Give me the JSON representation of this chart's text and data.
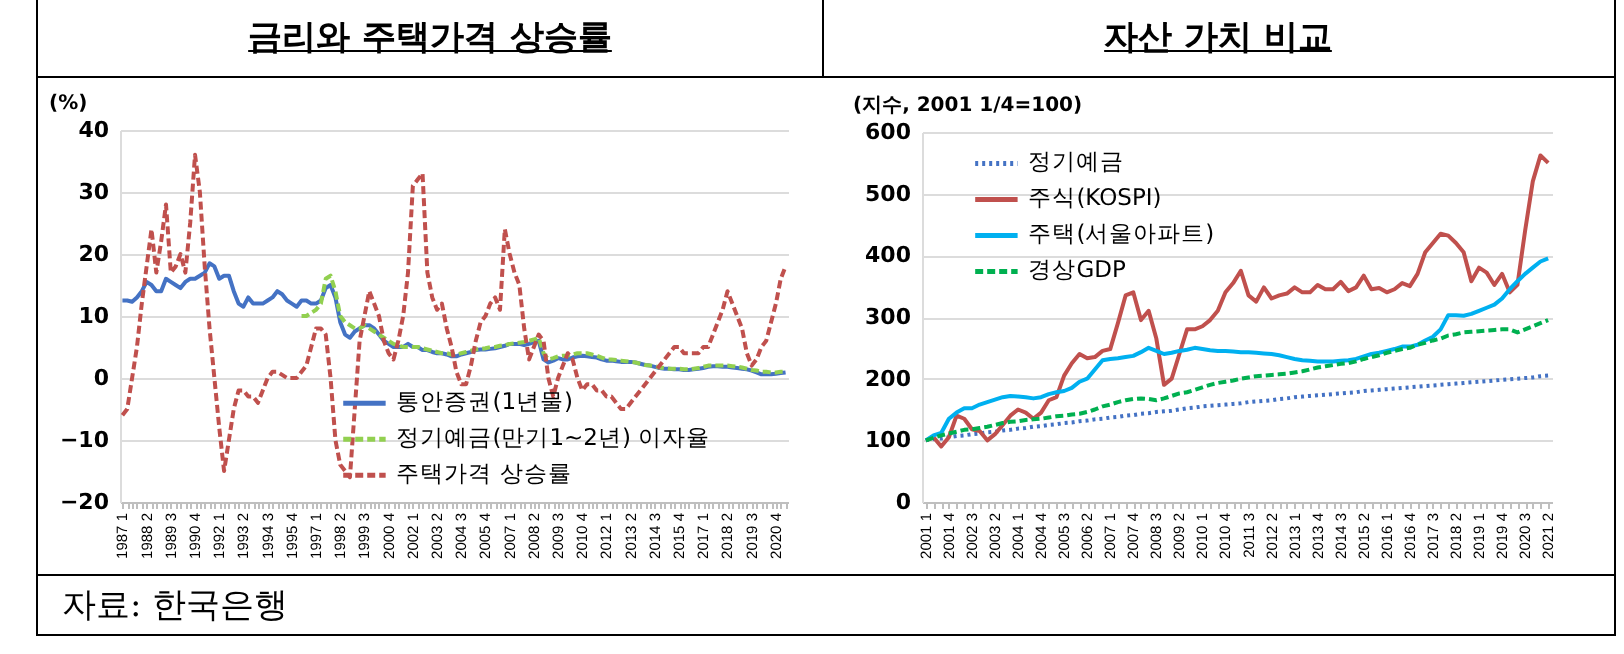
{
  "chart_data": [
    {
      "type": "line",
      "title": "금리와 주택가격 상승률",
      "ylabel": "(%)",
      "ylim": [
        -20,
        40
      ],
      "yticks": [
        -20,
        -10,
        0,
        10,
        20,
        30,
        40
      ],
      "grid": "y",
      "legend": "bottom",
      "annotations": [
        "자료: 한국은행"
      ],
      "categories": [
        "1987 1",
        null,
        null,
        null,
        null,
        "1988 2",
        null,
        null,
        null,
        null,
        "1989 3",
        null,
        null,
        null,
        null,
        "1990 4",
        null,
        null,
        null,
        null,
        "1992 1",
        null,
        null,
        null,
        null,
        "1993 2",
        null,
        null,
        null,
        null,
        "1994 3",
        null,
        null,
        null,
        null,
        "1995 4",
        null,
        null,
        null,
        null,
        "1997 1",
        null,
        null,
        null,
        null,
        "1998 2",
        null,
        null,
        null,
        null,
        "1999 3",
        null,
        null,
        null,
        null,
        "2000 4",
        null,
        null,
        null,
        null,
        "2002 1",
        null,
        null,
        null,
        null,
        "2003 2",
        null,
        null,
        null,
        null,
        "2004 3",
        null,
        null,
        null,
        null,
        "2005 4",
        null,
        null,
        null,
        null,
        "2007 1",
        null,
        null,
        null,
        null,
        "2008 2",
        null,
        null,
        null,
        null,
        "2009 3",
        null,
        null,
        null,
        null,
        "2010 4",
        null,
        null,
        null,
        null,
        "2012 1",
        null,
        null,
        null,
        null,
        "2013 2",
        null,
        null,
        null,
        null,
        "2014 3",
        null,
        null,
        null,
        null,
        "2015 4",
        null,
        null,
        null,
        null,
        "2017 1",
        null,
        null,
        null,
        null,
        "2018 2",
        null,
        null,
        null,
        null,
        "2019 3",
        null,
        null,
        null,
        null,
        "2020 4",
        null,
        null
      ],
      "series": [
        {
          "name": "통안증권(1년물)",
          "color": "#4472c4",
          "line_style": "solid",
          "values": [
            12.5,
            12.5,
            12.3,
            13,
            14,
            15.5,
            15,
            14,
            14,
            16,
            15.5,
            15,
            14.5,
            15.5,
            16,
            16,
            16.5,
            17,
            18.5,
            18,
            16,
            16.5,
            16.5,
            14,
            12,
            11.5,
            13,
            12,
            12,
            12,
            12.5,
            13,
            14,
            13.5,
            12.5,
            12,
            11.5,
            12.5,
            12.5,
            12,
            12,
            12.5,
            14.5,
            15,
            13,
            9,
            7,
            6.5,
            7.5,
            8,
            8.5,
            8.5,
            8,
            7,
            6,
            5.5,
            5,
            5,
            5,
            5.5,
            5,
            5,
            4.5,
            4.5,
            4.2,
            4,
            4,
            3.8,
            3.5,
            3.5,
            3.8,
            4,
            4.2,
            4.5,
            4.6,
            4.6,
            4.7,
            4.8,
            5,
            5.2,
            5.5,
            5.5,
            5.5,
            5.3,
            5.5,
            5.8,
            6,
            3,
            2.5,
            2.8,
            3.2,
            3,
            3,
            3.3,
            3.5,
            3.6,
            3.5,
            3.4,
            3.3,
            3,
            2.8,
            2.8,
            2.7,
            2.6,
            2.6,
            2.6,
            2.5,
            2.3,
            2.1,
            2,
            1.8,
            1.6,
            1.5,
            1.5,
            1.4,
            1.4,
            1.3,
            1.3,
            1.4,
            1.5,
            1.6,
            1.8,
            1.9,
            1.9,
            1.8,
            1.8,
            1.7,
            1.6,
            1.5,
            1.4,
            1.2,
            0.9,
            0.6,
            0.6,
            0.6,
            0.7,
            0.8,
            0.9
          ]
        },
        {
          "name": "정기예금(만기1~2년) 이자율",
          "color": "#92d050",
          "line_style": "dashed",
          "values": [
            null,
            null,
            null,
            null,
            null,
            null,
            null,
            null,
            null,
            null,
            null,
            null,
            null,
            null,
            null,
            null,
            null,
            null,
            null,
            null,
            null,
            null,
            null,
            null,
            null,
            null,
            null,
            null,
            null,
            null,
            null,
            null,
            null,
            null,
            null,
            null,
            null,
            10,
            10,
            10.5,
            11,
            12,
            16,
            16.5,
            14,
            10,
            9,
            8.5,
            8,
            8,
            8.5,
            8,
            7.5,
            7,
            6.5,
            6,
            5.5,
            5.3,
            5,
            5,
            5,
            5,
            4.8,
            4.6,
            4.4,
            4.2,
            4,
            4,
            3.8,
            3.8,
            4,
            4.2,
            4.4,
            4.6,
            4.7,
            4.8,
            5,
            5,
            5.2,
            5.3,
            5.5,
            5.6,
            5.7,
            5.8,
            6,
            6.2,
            6.5,
            4,
            3,
            3.2,
            3.5,
            3.6,
            3.6,
            3.8,
            4,
            4,
            4,
            3.8,
            3.6,
            3.3,
            3,
            3,
            2.9,
            2.8,
            2.7,
            2.6,
            2.5,
            2.3,
            2.1,
            2,
            1.9,
            1.7,
            1.6,
            1.5,
            1.5,
            1.5,
            1.4,
            1.4,
            1.5,
            1.6,
            1.8,
            2,
            2,
            2,
            2,
            2,
            1.9,
            1.8,
            1.7,
            1.5,
            1.3,
            1.2,
            1,
            1,
            0.9,
            0.9,
            1,
            1
          ]
        },
        {
          "name": "주택가격 상승률",
          "color": "#c0504d",
          "line_style": "dashed",
          "values": [
            -6,
            -5,
            0,
            5,
            12,
            18,
            24,
            17,
            22,
            28,
            17,
            18,
            20,
            17,
            25,
            36,
            30,
            18,
            8,
            0,
            -8,
            -15,
            -10,
            -5,
            -2,
            -2,
            -3,
            -3,
            -4,
            -2,
            0,
            1,
            1,
            0.5,
            0,
            0,
            0,
            1,
            2,
            5,
            8,
            8,
            7,
            0,
            -10,
            -14,
            -15,
            -16,
            -5,
            6,
            10,
            14,
            12,
            10,
            6,
            4,
            3,
            6,
            10,
            17,
            31,
            32,
            33,
            17,
            13,
            11,
            12,
            8,
            5,
            1,
            -1,
            -1,
            2,
            6,
            9,
            10,
            12,
            13,
            11,
            24,
            20,
            17,
            15,
            8,
            3,
            5,
            7,
            6,
            0,
            -3,
            0,
            2,
            4,
            3,
            0,
            -2,
            -1,
            -1,
            -2,
            -2,
            -3,
            -3,
            -4,
            -5,
            -5,
            -4,
            -3,
            -2,
            -1,
            0,
            1,
            2,
            3,
            4,
            5,
            5,
            4,
            4,
            4,
            4,
            5,
            5,
            7,
            9,
            11,
            14,
            12,
            10,
            8,
            4,
            2,
            3,
            5,
            6,
            9,
            12,
            16,
            18
          ]
        }
      ]
    },
    {
      "type": "line",
      "title": "자산 가치 비교",
      "ylabel": "(지수, 2001 1/4=100)",
      "ylim": [
        0,
        600
      ],
      "yticks": [
        0,
        100,
        200,
        300,
        400,
        500,
        600
      ],
      "grid": "y",
      "legend": "top left",
      "categories": [
        "2001 1",
        null,
        null,
        "2001 4",
        null,
        null,
        "2002 3",
        null,
        null,
        "2003 2",
        null,
        null,
        "2004 1",
        null,
        null,
        "2004 4",
        null,
        null,
        "2005 3",
        null,
        null,
        "2006 2",
        null,
        null,
        "2007 1",
        null,
        null,
        "2007 4",
        null,
        null,
        "2008 3",
        null,
        null,
        "2009 2",
        null,
        null,
        "2010 1",
        null,
        null,
        "2010 4",
        null,
        null,
        "2011 3",
        null,
        null,
        "2012 2",
        null,
        null,
        "2013 1",
        null,
        null,
        "2013 4",
        null,
        null,
        "2014 3",
        null,
        null,
        "2015 2",
        null,
        null,
        "2016 1",
        null,
        null,
        "2016 4",
        null,
        null,
        "2017 3",
        null,
        null,
        "2018 2",
        null,
        null,
        "2019 1",
        null,
        null,
        "2019 4",
        null,
        null,
        "2020 3",
        null,
        null,
        "2021 2"
      ],
      "series": [
        {
          "name": "정기예금",
          "color": "#4472c4",
          "line_style": "dotted",
          "values": [
            100,
            102,
            103,
            105,
            107,
            108,
            110,
            111,
            113,
            114,
            116,
            117,
            119,
            120,
            122,
            123,
            125,
            126,
            128,
            129,
            131,
            132,
            134,
            135,
            137,
            138,
            140,
            141,
            143,
            144,
            146,
            147,
            148,
            150,
            152,
            153,
            155,
            156,
            157,
            158,
            159,
            160,
            162,
            163,
            164,
            165,
            167,
            168,
            170,
            171,
            172,
            173,
            174,
            175,
            176,
            177,
            178,
            180,
            181,
            182,
            183,
            184,
            185,
            186,
            187,
            188,
            189,
            190,
            191,
            192,
            193,
            194,
            195,
            196,
            197,
            198,
            199,
            200,
            201,
            202,
            204,
            205
          ]
        },
        {
          "name": "주식(KOSPI)",
          "color": "#c0504d",
          "line_style": "solid",
          "values": [
            100,
            105,
            90,
            105,
            140,
            135,
            118,
            115,
            100,
            110,
            125,
            140,
            150,
            145,
            135,
            145,
            165,
            170,
            205,
            225,
            240,
            233,
            235,
            245,
            248,
            290,
            335,
            340,
            295,
            310,
            265,
            190,
            200,
            240,
            280,
            280,
            285,
            295,
            310,
            340,
            355,
            375,
            335,
            325,
            348,
            330,
            335,
            338,
            348,
            340,
            340,
            352,
            345,
            345,
            357,
            342,
            348,
            367,
            345,
            347,
            340,
            345,
            355,
            350,
            370,
            405,
            420,
            435,
            432,
            420,
            405,
            358,
            380,
            372,
            352,
            370,
            340,
            352,
            440,
            520,
            562,
            550
          ]
        },
        {
          "name": "주택(서울아파트)",
          "color": "#00b0f0",
          "line_style": "solid",
          "values": [
            100,
            108,
            112,
            135,
            145,
            152,
            152,
            158,
            162,
            166,
            170,
            172,
            171,
            170,
            168,
            170,
            175,
            178,
            180,
            185,
            195,
            200,
            215,
            230,
            232,
            233,
            235,
            237,
            243,
            250,
            245,
            240,
            242,
            245,
            247,
            250,
            248,
            246,
            245,
            245,
            244,
            243,
            243,
            242,
            241,
            240,
            238,
            235,
            232,
            230,
            229,
            228,
            228,
            228,
            229,
            230,
            232,
            236,
            240,
            242,
            245,
            248,
            252,
            252,
            255,
            262,
            268,
            280,
            303,
            303,
            302,
            305,
            310,
            315,
            320,
            330,
            345,
            358,
            370,
            380,
            390,
            395
          ]
        },
        {
          "name": "경상GDP",
          "color": "#00b050",
          "line_style": "dashed",
          "values": [
            100,
            104,
            108,
            111,
            114,
            117,
            118,
            120,
            122,
            125,
            128,
            130,
            131,
            133,
            134,
            135,
            137,
            139,
            140,
            142,
            143,
            146,
            150,
            155,
            158,
            162,
            165,
            167,
            168,
            167,
            165,
            168,
            172,
            176,
            178,
            182,
            186,
            190,
            193,
            195,
            197,
            200,
            202,
            204,
            205,
            206,
            207,
            208,
            210,
            212,
            215,
            218,
            220,
            222,
            224,
            225,
            228,
            232,
            235,
            238,
            242,
            245,
            248,
            250,
            255,
            258,
            262,
            265,
            270,
            272,
            275,
            276,
            277,
            278,
            279,
            280,
            280,
            275,
            280,
            285,
            290,
            295
          ]
        }
      ]
    }
  ]
}
